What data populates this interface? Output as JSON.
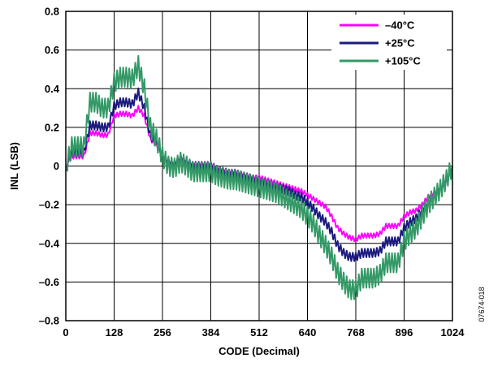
{
  "chart_data": {
    "type": "line",
    "title": "",
    "xlabel": "CODE (Decimal)",
    "ylabel": "INL (LSB)",
    "xlim": [
      0,
      1024
    ],
    "ylim": [
      -0.8,
      0.8
    ],
    "xticks": [
      0,
      128,
      256,
      384,
      512,
      640,
      768,
      896,
      1024
    ],
    "xtick_labels": [
      "0",
      "128",
      "256",
      "384",
      "512",
      "640",
      "768",
      "896",
      "1024"
    ],
    "yticks": [
      -0.8,
      -0.6,
      -0.4,
      -0.2,
      0,
      0.2,
      0.4,
      0.6,
      0.8
    ],
    "ytick_labels": [
      "–0.8",
      "–0.6",
      "–0.4",
      "–0.2",
      "0",
      "0.2",
      "0.4",
      "0.6",
      "0.8"
    ],
    "grid": true,
    "legend_position": "top-right",
    "figure_id": "07674-018",
    "x": [
      0,
      16,
      32,
      48,
      64,
      80,
      96,
      112,
      128,
      144,
      160,
      176,
      192,
      208,
      224,
      240,
      256,
      272,
      288,
      304,
      320,
      336,
      352,
      368,
      384,
      400,
      416,
      432,
      448,
      464,
      480,
      496,
      512,
      528,
      544,
      560,
      576,
      592,
      608,
      624,
      640,
      656,
      672,
      688,
      704,
      720,
      736,
      752,
      768,
      784,
      800,
      816,
      832,
      848,
      864,
      880,
      896,
      912,
      928,
      944,
      960,
      976,
      992,
      1008,
      1024
    ],
    "series": [
      {
        "name": "–40°C",
        "color": "#ff00ff",
        "noise": 0.012,
        "values": [
          0,
          0.05,
          0.05,
          0.05,
          0.17,
          0.17,
          0.16,
          0.16,
          0.26,
          0.27,
          0.27,
          0.26,
          0.3,
          0.26,
          0.14,
          0.11,
          0.05,
          0.02,
          0.01,
          0.04,
          0.02,
          0.01,
          0.01,
          0.01,
          0.01,
          -0.01,
          -0.02,
          -0.03,
          -0.03,
          -0.04,
          -0.05,
          -0.06,
          -0.06,
          -0.07,
          -0.08,
          -0.09,
          -0.1,
          -0.11,
          -0.12,
          -0.13,
          -0.15,
          -0.17,
          -0.19,
          -0.21,
          -0.26,
          -0.32,
          -0.35,
          -0.37,
          -0.38,
          -0.36,
          -0.36,
          -0.36,
          -0.35,
          -0.31,
          -0.31,
          -0.31,
          -0.26,
          -0.24,
          -0.23,
          -0.2,
          -0.16,
          -0.14,
          -0.11,
          -0.08,
          0
        ]
      },
      {
        "name": "+25°C",
        "color": "#1a1a80",
        "noise": 0.022,
        "values": [
          0,
          0.07,
          0.07,
          0.07,
          0.21,
          0.21,
          0.2,
          0.2,
          0.31,
          0.33,
          0.33,
          0.32,
          0.38,
          0.3,
          0.16,
          0.12,
          0.05,
          0.02,
          0.01,
          0.04,
          0.02,
          0.0,
          0.0,
          0.0,
          0.0,
          -0.02,
          -0.03,
          -0.04,
          -0.04,
          -0.05,
          -0.06,
          -0.07,
          -0.08,
          -0.09,
          -0.1,
          -0.11,
          -0.12,
          -0.13,
          -0.15,
          -0.16,
          -0.19,
          -0.22,
          -0.26,
          -0.29,
          -0.34,
          -0.41,
          -0.45,
          -0.47,
          -0.47,
          -0.45,
          -0.45,
          -0.45,
          -0.44,
          -0.39,
          -0.39,
          -0.39,
          -0.32,
          -0.29,
          -0.27,
          -0.23,
          -0.19,
          -0.16,
          -0.12,
          -0.08,
          0
        ]
      },
      {
        "name": "+105°C",
        "color": "#339966",
        "noise": 0.05,
        "values": [
          0,
          0.1,
          0.1,
          0.1,
          0.33,
          0.33,
          0.3,
          0.3,
          0.43,
          0.46,
          0.46,
          0.45,
          0.52,
          0.4,
          0.2,
          0.14,
          0.05,
          0.0,
          -0.01,
          0.02,
          0.0,
          -0.03,
          -0.03,
          -0.03,
          -0.03,
          -0.05,
          -0.06,
          -0.07,
          -0.07,
          -0.08,
          -0.09,
          -0.1,
          -0.11,
          -0.12,
          -0.13,
          -0.14,
          -0.16,
          -0.18,
          -0.2,
          -0.22,
          -0.26,
          -0.3,
          -0.36,
          -0.41,
          -0.47,
          -0.55,
          -0.6,
          -0.64,
          -0.64,
          -0.58,
          -0.58,
          -0.58,
          -0.56,
          -0.5,
          -0.5,
          -0.5,
          -0.39,
          -0.35,
          -0.32,
          -0.26,
          -0.2,
          -0.16,
          -0.12,
          -0.07,
          0
        ]
      }
    ]
  }
}
